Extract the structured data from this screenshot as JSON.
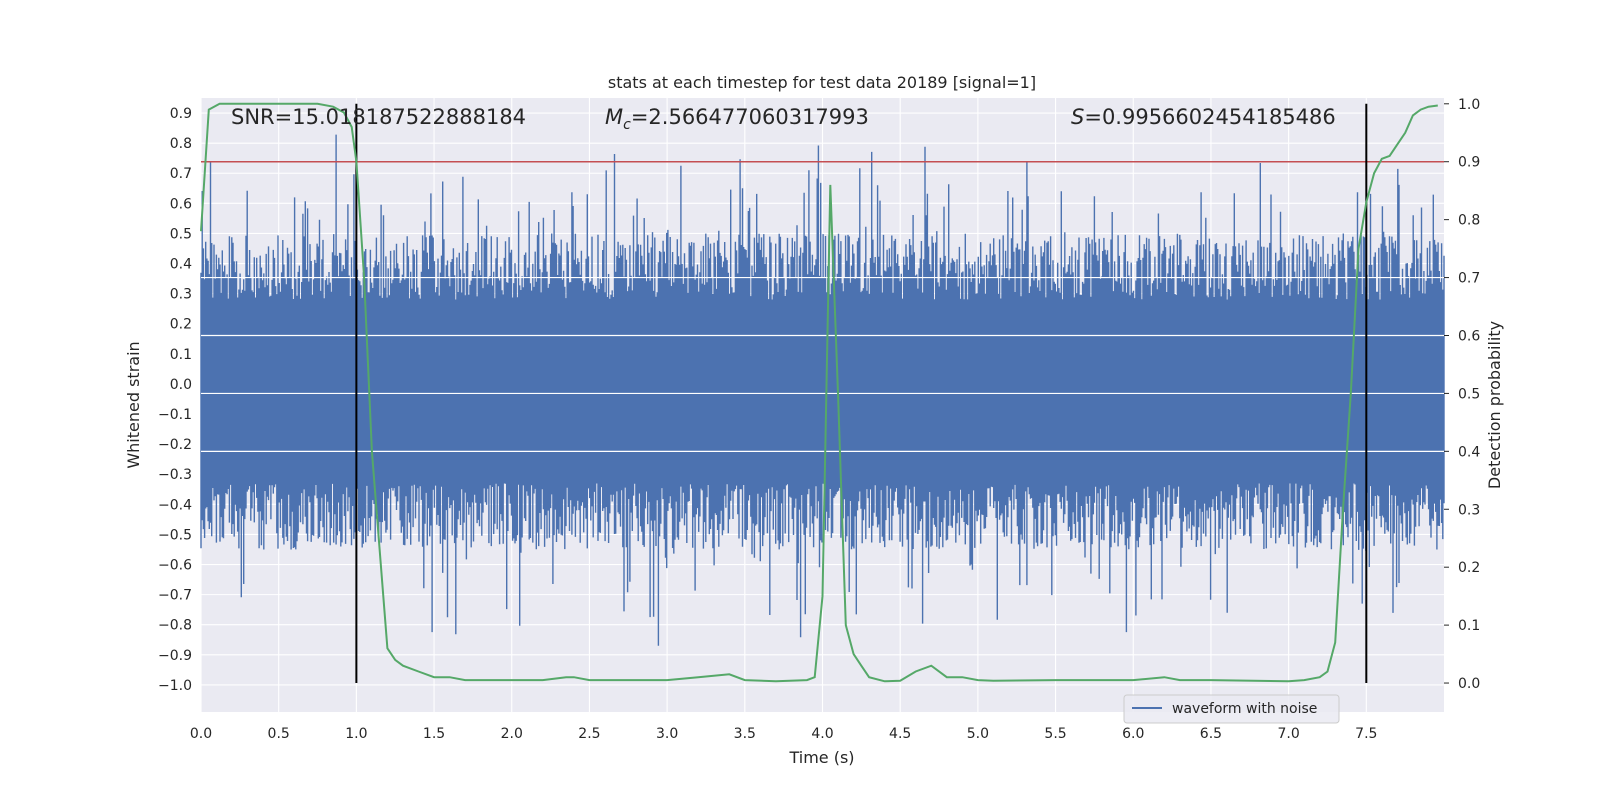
{
  "chart_data": {
    "type": "line",
    "title": "stats at each timestep for test data 20189 [signal=1]",
    "xlabel": "Time (s)",
    "ylabel_left": "Whitened strain",
    "ylabel_right": "Detection probability",
    "xlim": [
      0.0,
      8.0
    ],
    "ylim_left": [
      -1.09,
      0.95
    ],
    "ylim_right": [
      -0.05,
      1.01
    ],
    "x_ticks": [
      "0.0",
      "0.5",
      "1.0",
      "1.5",
      "2.0",
      "2.5",
      "3.0",
      "3.5",
      "4.0",
      "4.5",
      "5.0",
      "5.5",
      "6.0",
      "6.5",
      "7.0",
      "7.5"
    ],
    "y_ticks_left": [
      "−1.0",
      "−0.9",
      "−0.8",
      "−0.7",
      "−0.6",
      "−0.5",
      "−0.4",
      "−0.3",
      "−0.2",
      "−0.1",
      "0.0",
      "0.1",
      "0.2",
      "0.3",
      "0.4",
      "0.5",
      "0.6",
      "0.7",
      "0.8",
      "0.9"
    ],
    "y_ticks_right": [
      "0.0",
      "0.1",
      "0.2",
      "0.3",
      "0.4",
      "0.5",
      "0.6",
      "0.7",
      "0.8",
      "0.9",
      "1.0"
    ],
    "grid": true,
    "legend_position": "lower-right",
    "annotations": {
      "snr": "SNR=15.018187522888184",
      "mc_symbol": "M",
      "mc_sub": "c",
      "mc_value": "=2.566477060317993",
      "s_symbol": "S",
      "s_value": "=0.9956602454185486"
    },
    "vertical_lines_x": [
      1.0,
      7.5
    ],
    "threshold_probability": 0.9,
    "series": [
      {
        "name": "waveform with noise",
        "kind": "strain-noise",
        "color": "#4c72b0",
        "noise_band": [
          -0.33,
          0.28
        ],
        "peak_range": [
          -0.99,
          0.9
        ]
      },
      {
        "kind": "probability",
        "color": "#55a868",
        "x": [
          0.0,
          0.05,
          0.12,
          0.3,
          0.5,
          0.75,
          0.85,
          0.92,
          0.97,
          1.0,
          1.05,
          1.1,
          1.2,
          1.25,
          1.3,
          1.4,
          1.5,
          1.6,
          1.7,
          1.8,
          2.0,
          2.2,
          2.35,
          2.4,
          2.5,
          2.7,
          3.0,
          3.2,
          3.4,
          3.5,
          3.7,
          3.9,
          3.95,
          4.0,
          4.05,
          4.1,
          4.15,
          4.2,
          4.25,
          4.3,
          4.4,
          4.5,
          4.6,
          4.7,
          4.8,
          4.9,
          5.0,
          5.1,
          5.5,
          6.0,
          6.2,
          6.3,
          6.5,
          7.0,
          7.1,
          7.2,
          7.25,
          7.3,
          7.35,
          7.4,
          7.45,
          7.5,
          7.55,
          7.6,
          7.65,
          7.7,
          7.75,
          7.8,
          7.85,
          7.9,
          7.96
        ],
        "y": [
          0.78,
          0.99,
          1.0,
          1.0,
          1.0,
          1.0,
          0.995,
          0.985,
          0.96,
          0.9,
          0.7,
          0.4,
          0.06,
          0.04,
          0.03,
          0.02,
          0.01,
          0.01,
          0.005,
          0.005,
          0.005,
          0.005,
          0.01,
          0.01,
          0.005,
          0.005,
          0.005,
          0.01,
          0.015,
          0.005,
          0.003,
          0.005,
          0.01,
          0.15,
          0.86,
          0.5,
          0.1,
          0.05,
          0.03,
          0.01,
          0.003,
          0.004,
          0.02,
          0.03,
          0.01,
          0.01,
          0.005,
          0.004,
          0.005,
          0.005,
          0.01,
          0.005,
          0.005,
          0.003,
          0.005,
          0.01,
          0.02,
          0.07,
          0.3,
          0.5,
          0.75,
          0.83,
          0.88,
          0.905,
          0.91,
          0.93,
          0.95,
          0.98,
          0.99,
          0.995,
          0.997
        ]
      },
      {
        "kind": "threshold",
        "color": "#c44e52"
      }
    ]
  }
}
